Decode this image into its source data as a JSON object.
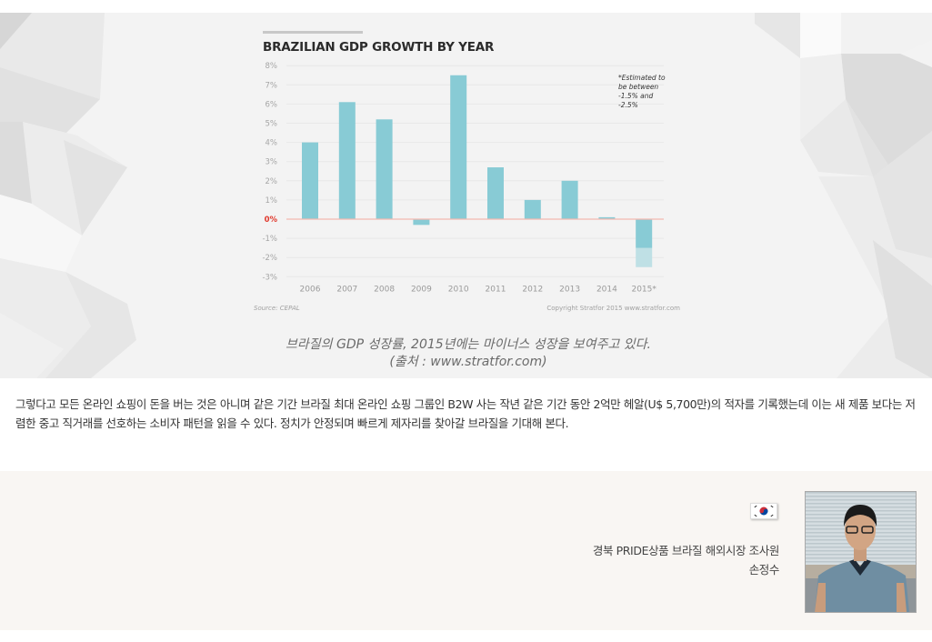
{
  "chart_data": {
    "type": "bar",
    "title": "BRAZILIAN GDP GROWTH BY YEAR",
    "xlabel": "",
    "ylabel": "",
    "categories": [
      "2006",
      "2007",
      "2008",
      "2009",
      "2010",
      "2011",
      "2012",
      "2013",
      "2014",
      "2015*"
    ],
    "values": [
      4.0,
      6.1,
      5.2,
      -0.3,
      7.5,
      2.7,
      1.0,
      2.0,
      0.1,
      -1.5
    ],
    "estimate_range": {
      "category": "2015*",
      "low": -2.5,
      "high": -1.5
    },
    "ylim": [
      -3,
      8
    ],
    "y_ticks": [
      "8%",
      "7%",
      "6%",
      "5%",
      "4%",
      "3%",
      "2%",
      "1%",
      "0%",
      "-1%",
      "-2%",
      "-3%"
    ],
    "grid": true,
    "annotation": "*Estimated to be between -1.5% and -2.5%",
    "annotation_lines": [
      "*Estimated to",
      "be between",
      "-1.5% and",
      "-2.5%"
    ],
    "source": "Source: CEPAL",
    "copyright": "Copyright Stratfor 2015   www.stratfor.com",
    "colors": {
      "bar": "#88cbd5",
      "bar_estimate": "#bfe0e5",
      "zero_line": "#f3b9b0",
      "zero_label": "#e03a2e",
      "grid": "#e8e8e8"
    }
  },
  "caption": {
    "line1": "브라질의 GDP 성장률, 2015년에는 마이너스 성장을 보여주고 있다.",
    "line2": "(출처 : www.stratfor.com)"
  },
  "article": {
    "paragraph": "그렇다고 모든 온라인 쇼핑이 돈을 버는 것은 아니며 같은 기간 브라질 최대 온라인 쇼핑 그룹인 B2W 사는 작년 같은 기간 동안 2억만 헤알(U$ 5,700만)의 적자를 기록했는데 이는 새 제품 보다는 저렴한 중고 직거래를 선호하는 소비자 패턴을 읽을 수 있다. 정치가 안정되며 빠르게 제자리를 찾아갈 브라질을 기대해 본다."
  },
  "author": {
    "flag_icon": "south-korea-flag",
    "role": "경북 PRIDE상품 브라질 해외시장 조사원",
    "name": "손정수"
  }
}
